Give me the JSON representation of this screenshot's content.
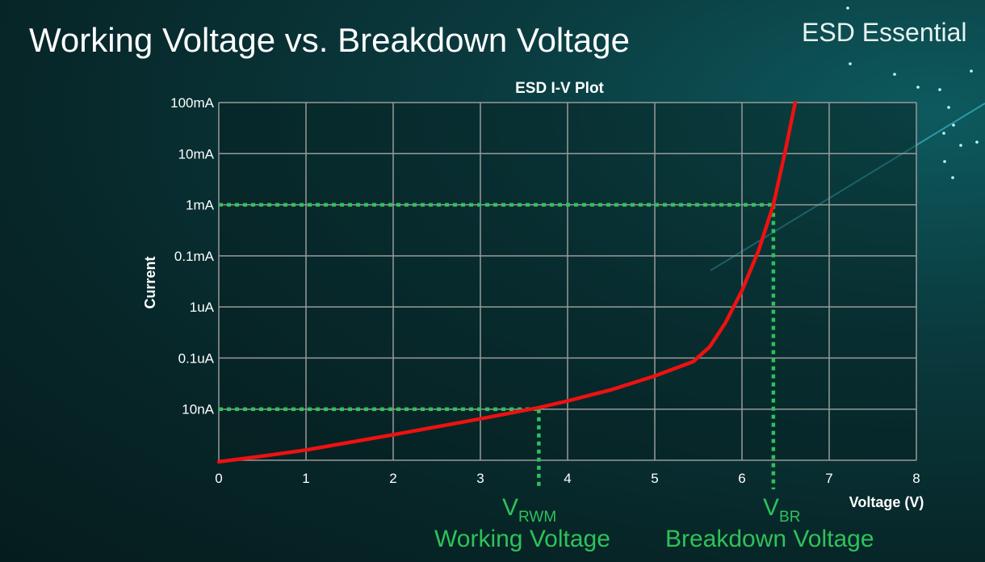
{
  "slide": {
    "title": "Working Voltage vs. Breakdown Voltage",
    "brand": "ESD Essential"
  },
  "annotations": {
    "vrwm_symbol": "V",
    "vrwm_subscript": "RWM",
    "vrwm_caption": "Working Voltage",
    "vbr_symbol": "V",
    "vbr_subscript": "BR",
    "vbr_caption": "Breakdown Voltage"
  },
  "colors": {
    "curve": "#ee1111",
    "marker_lines": "#2ec25a",
    "grid": "#9a9a9a",
    "background": "#072628"
  },
  "chart_data": {
    "type": "line",
    "title": "ESD I-V Plot",
    "xlabel": "Voltage (V)",
    "ylabel": "Current",
    "xlim": [
      0,
      8
    ],
    "xticks": [
      0,
      1,
      2,
      3,
      4,
      5,
      6,
      7,
      8
    ],
    "y_scale": "log (one decade per gridline, tick index units)",
    "ylim": [
      0,
      7
    ],
    "yticks": [
      {
        "level": 1,
        "label": "10nA"
      },
      {
        "level": 2,
        "label": "0.1uA"
      },
      {
        "level": 3,
        "label": "1uA"
      },
      {
        "level": 4,
        "label": "0.1mA"
      },
      {
        "level": 5,
        "label": "1mA"
      },
      {
        "level": 6,
        "label": "10mA"
      },
      {
        "level": 7,
        "label": "100mA"
      }
    ],
    "grid": true,
    "series": [
      {
        "x": [
          0,
          0.5,
          1,
          2,
          3,
          3.67,
          4,
          4.5,
          5,
          5.44,
          5.63,
          5.81,
          6.0,
          6.19,
          6.36,
          6.49,
          6.61
        ],
        "y": [
          -0.03,
          0.08,
          0.2,
          0.5,
          0.81,
          1.03,
          1.16,
          1.38,
          1.65,
          1.93,
          2.22,
          2.69,
          3.32,
          4.1,
          5.0,
          6.0,
          7.0
        ]
      }
    ],
    "markers": [
      {
        "x": 3.67,
        "level": 1,
        "label": "VRWM"
      },
      {
        "x": 6.36,
        "level": 5,
        "label": "VBR"
      }
    ]
  }
}
